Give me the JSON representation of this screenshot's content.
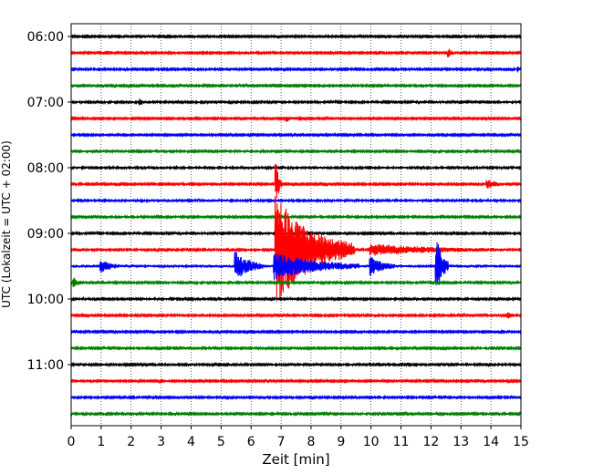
{
  "chart_data": {
    "type": "line",
    "title": "",
    "xlabel": "Zeit  [min]",
    "ylabel": "UTC (Lokalzeit = UTC + 02:00)",
    "xlim": [
      0,
      15
    ],
    "x_ticks": [
      0,
      1,
      2,
      3,
      4,
      5,
      6,
      7,
      8,
      9,
      10,
      11,
      12,
      13,
      14,
      15
    ],
    "grid": "vertical dotted lines at each minute",
    "y_ticks": [
      {
        "label": "06:00",
        "row": 0
      },
      {
        "label": "07:00",
        "row": 4
      },
      {
        "label": "08:00",
        "row": 8
      },
      {
        "label": "09:00",
        "row": 12
      },
      {
        "label": "10:00",
        "row": 16
      },
      {
        "label": "11:00",
        "row": 20
      }
    ],
    "row_interval_min": 15,
    "color_cycle": [
      "#000000",
      "#ff0000",
      "#0000ff",
      "#008000"
    ],
    "traces": [
      {
        "start": "06:00",
        "color": "#000000",
        "noise": 1.0,
        "events": []
      },
      {
        "start": "06:15",
        "color": "#ff0000",
        "noise": 1.0,
        "events": [
          {
            "t": 12.6,
            "amp": 4,
            "dur": 0.3
          }
        ]
      },
      {
        "start": "06:30",
        "color": "#0000ff",
        "noise": 1.1,
        "events": [
          {
            "t": 14.9,
            "amp": 3,
            "dur": 0.2
          }
        ]
      },
      {
        "start": "06:45",
        "color": "#008000",
        "noise": 1.0,
        "events": []
      },
      {
        "start": "07:00",
        "color": "#000000",
        "noise": 1.2,
        "events": [
          {
            "t": 2.3,
            "amp": 3,
            "dur": 0.3
          }
        ]
      },
      {
        "start": "07:15",
        "color": "#ff0000",
        "noise": 1.0,
        "events": [
          {
            "t": 7.2,
            "amp": 3,
            "dur": 0.4
          }
        ]
      },
      {
        "start": "07:30",
        "color": "#0000ff",
        "noise": 1.0,
        "events": []
      },
      {
        "start": "07:45",
        "color": "#008000",
        "noise": 1.2,
        "events": []
      },
      {
        "start": "08:00",
        "color": "#000000",
        "noise": 1.3,
        "events": []
      },
      {
        "start": "08:15",
        "color": "#ff0000",
        "noise": 1.1,
        "events": [
          {
            "t": 6.85,
            "amp": 22,
            "dur": 0.2
          },
          {
            "t": 13.9,
            "amp": 5,
            "dur": 0.6
          }
        ]
      },
      {
        "start": "08:30",
        "color": "#0000ff",
        "noise": 1.3,
        "events": []
      },
      {
        "start": "08:45",
        "color": "#008000",
        "noise": 1.2,
        "events": []
      },
      {
        "start": "09:00",
        "color": "#000000",
        "noise": 1.2,
        "events": []
      },
      {
        "start": "09:15",
        "color": "#ff0000",
        "noise": 1.2,
        "events": [
          {
            "t": 6.85,
            "amp": 60,
            "dur": 2.6
          },
          {
            "t": 10.0,
            "amp": 6,
            "dur": 4.5
          }
        ]
      },
      {
        "start": "09:30",
        "color": "#0000ff",
        "noise": 1.8,
        "events": [
          {
            "t": 1.0,
            "amp": 6,
            "dur": 0.6
          },
          {
            "t": 5.5,
            "amp": 15,
            "dur": 0.9
          },
          {
            "t": 6.8,
            "amp": 14,
            "dur": 2.8
          },
          {
            "t": 10.0,
            "amp": 10,
            "dur": 0.8
          },
          {
            "t": 12.2,
            "amp": 30,
            "dur": 0.4
          }
        ]
      },
      {
        "start": "09:45",
        "color": "#008000",
        "noise": 1.2,
        "events": [
          {
            "t": 0.1,
            "amp": 6,
            "dur": 0.3
          }
        ]
      },
      {
        "start": "10:00",
        "color": "#000000",
        "noise": 1.2,
        "events": []
      },
      {
        "start": "10:15",
        "color": "#ff0000",
        "noise": 1.1,
        "events": [
          {
            "t": 14.6,
            "amp": 3,
            "dur": 0.3
          }
        ]
      },
      {
        "start": "10:30",
        "color": "#0000ff",
        "noise": 1.0,
        "events": []
      },
      {
        "start": "10:45",
        "color": "#008000",
        "noise": 1.1,
        "events": []
      },
      {
        "start": "11:00",
        "color": "#000000",
        "noise": 1.2,
        "events": []
      },
      {
        "start": "11:15",
        "color": "#ff0000",
        "noise": 1.0,
        "events": [
          {
            "t": 3.0,
            "amp": 2,
            "dur": 0.4
          }
        ]
      },
      {
        "start": "11:30",
        "color": "#0000ff",
        "noise": 1.1,
        "events": []
      },
      {
        "start": "11:45",
        "color": "#008000",
        "noise": 1.1,
        "events": []
      }
    ]
  }
}
